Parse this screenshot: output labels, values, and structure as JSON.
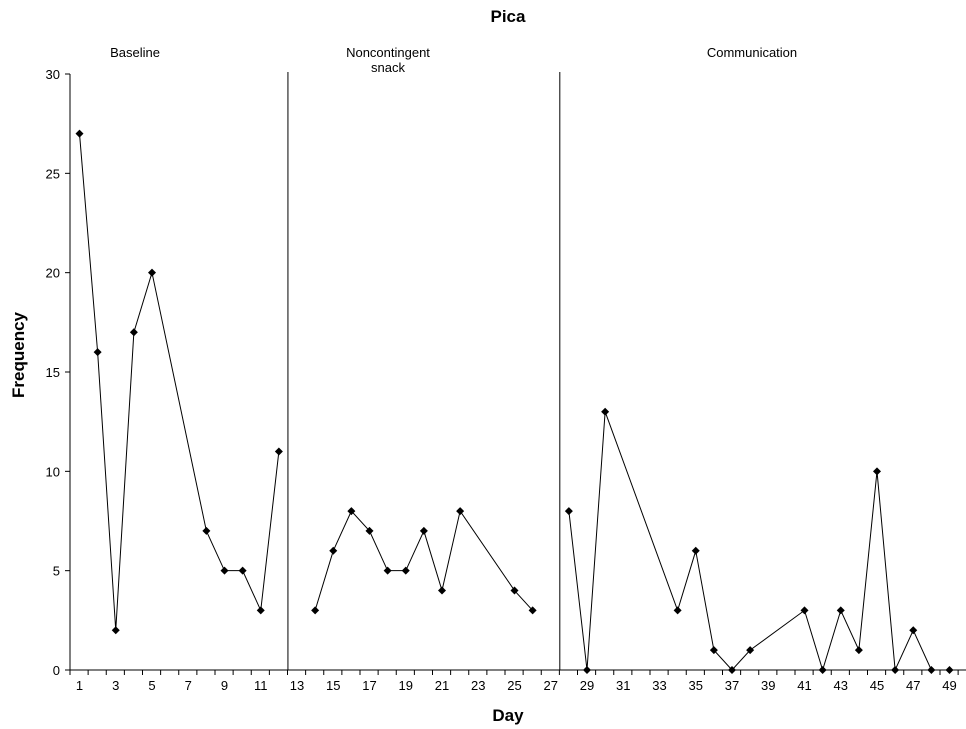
{
  "chart_data": {
    "type": "line",
    "title": "Pica",
    "xlabel": "Day",
    "ylabel": "Frequency",
    "xlim": [
      0.5,
      49.5
    ],
    "ylim": [
      0,
      30
    ],
    "x_ticks": [
      1,
      3,
      5,
      7,
      9,
      11,
      13,
      15,
      17,
      19,
      21,
      23,
      25,
      27,
      29,
      31,
      33,
      35,
      37,
      39,
      41,
      43,
      45,
      47,
      49
    ],
    "y_ticks": [
      0,
      5,
      10,
      15,
      20,
      25,
      30
    ],
    "grid": false,
    "marker": "diamond",
    "phases": [
      {
        "label": [
          "Baseline"
        ],
        "start": 1,
        "end": 12
      },
      {
        "label": [
          "Noncontingent",
          "snack"
        ],
        "start": 14,
        "end": 26
      },
      {
        "label": [
          "Communication"
        ],
        "start": 28,
        "end": 49
      }
    ],
    "phase_lines": [
      12.5,
      27.5
    ],
    "series": [
      {
        "x": [
          1,
          2,
          3,
          4,
          5,
          8,
          9,
          10,
          11,
          12
        ],
        "y": [
          27,
          16,
          2,
          17,
          20,
          7,
          5,
          5,
          3,
          11
        ]
      },
      {
        "x": [
          14,
          15,
          16,
          17,
          18,
          19,
          20,
          21,
          22,
          25,
          26
        ],
        "y": [
          3,
          6,
          8,
          7,
          5,
          5,
          7,
          4,
          8,
          4,
          3
        ]
      },
      {
        "x": [
          28,
          29,
          30,
          34,
          35,
          36,
          37,
          38,
          41,
          42,
          43,
          44,
          45,
          46,
          47,
          48,
          49
        ],
        "y": [
          8,
          0,
          13,
          3,
          6,
          1,
          0,
          1,
          3,
          0,
          3,
          1,
          10,
          0,
          2,
          0,
          0
        ]
      }
    ]
  }
}
